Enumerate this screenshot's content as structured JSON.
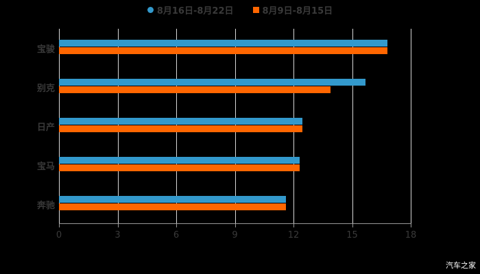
{
  "chart_data": {
    "type": "bar",
    "orientation": "horizontal",
    "categories": [
      "宝骏",
      "别克",
      "日产",
      "宝马",
      "奔驰"
    ],
    "series": [
      {
        "name": "8月16日-8月22日",
        "color": "#3399cc",
        "values": [
          16.8,
          15.7,
          12.45,
          12.3,
          11.6
        ]
      },
      {
        "name": "8月9日-8月15日",
        "color": "#ff6600",
        "values": [
          16.8,
          13.9,
          12.45,
          12.3,
          11.6
        ]
      }
    ],
    "xlim": [
      0,
      18
    ],
    "xticks": [
      0,
      3,
      6,
      9,
      12,
      15,
      18
    ],
    "grid": true,
    "legend_position": "top"
  },
  "legend": {
    "s1": "8月16日-8月22日",
    "s2": "8月9日-8月15日"
  },
  "watermark": "汽车之家"
}
